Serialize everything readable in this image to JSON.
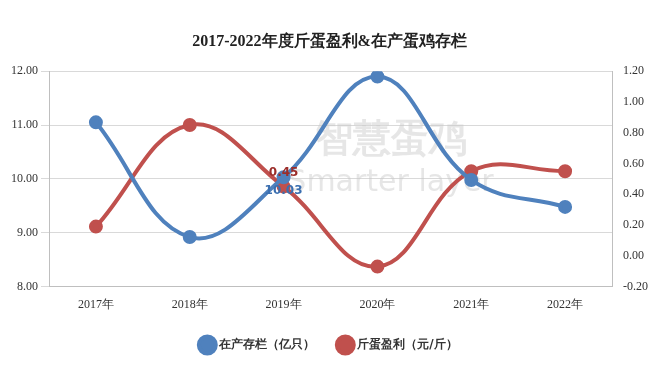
{
  "chart_data": {
    "type": "line",
    "title": "2017-2022年度斤蛋盈利&在产蛋鸡存栏",
    "categories": [
      "2017年",
      "2018年",
      "2019年",
      "2020年",
      "2021年",
      "2022年"
    ],
    "series": [
      {
        "name": "在产存栏（亿只）",
        "color": "#4f81bd",
        "marker": "circle",
        "values": [
          11.05,
          8.92,
          10.03,
          11.9,
          9.98,
          9.48
        ]
      },
      {
        "name": "斤蛋盈利（元/斤）",
        "color": "#c0504d",
        "marker": "circle",
        "axis": "y2",
        "values": [
          0.19,
          0.85,
          0.45,
          -0.07,
          0.55,
          0.55
        ]
      }
    ],
    "annotations": [
      {
        "series": "在产存栏（亿只）",
        "category": "2019年",
        "text": "10.03"
      },
      {
        "series": "斤蛋盈利（元/斤）",
        "category": "2019年",
        "text": "0.45"
      }
    ],
    "watermark": [
      "智慧蛋鸡",
      "Smarter layer"
    ],
    "ylim": [
      8,
      12
    ],
    "yticks": [
      {
        "value": 8,
        "label": "8.00"
      },
      {
        "value": 9,
        "label": "9.00"
      },
      {
        "value": 10,
        "label": "10.00"
      },
      {
        "value": 11,
        "label": "11.00"
      },
      {
        "value": 12,
        "label": "12.00"
      }
    ],
    "y2lim": [
      -0.2,
      1.2
    ],
    "y2ticks": [
      {
        "value": -0.2,
        "label": "-0.20"
      },
      {
        "value": 0,
        "label": "0.00"
      },
      {
        "value": 0.2,
        "label": "0.20"
      },
      {
        "value": 0.4,
        "label": "0.40"
      },
      {
        "value": 0.6,
        "label": "0.60"
      },
      {
        "value": 0.8,
        "label": "0.80"
      },
      {
        "value": 1,
        "label": "1.00"
      },
      {
        "value": 1.2,
        "label": "1.20"
      }
    ],
    "grid": true,
    "legend": "bottom"
  }
}
